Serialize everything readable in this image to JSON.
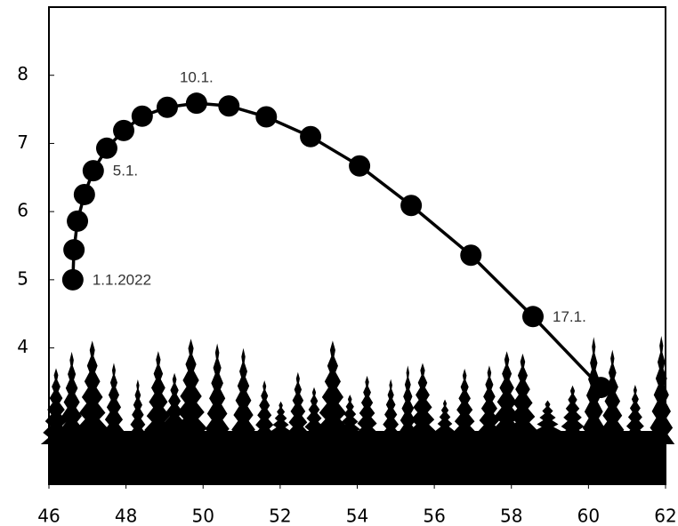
{
  "chart_data": {
    "type": "line",
    "x": [
      46.62,
      46.65,
      46.74,
      46.92,
      47.15,
      47.5,
      47.94,
      48.42,
      49.07,
      49.83,
      50.67,
      51.64,
      52.79,
      54.06,
      55.4,
      56.95,
      58.56,
      60.32
    ],
    "series": [
      {
        "color": "#000000",
        "values": [
          5.0,
          5.44,
          5.86,
          6.25,
          6.6,
          6.93,
          7.19,
          7.4,
          7.53,
          7.59,
          7.55,
          7.39,
          7.1,
          6.67,
          6.09,
          5.36,
          4.46,
          3.42
        ],
        "point_labels": [
          "1.1.2022",
          null,
          null,
          null,
          "5.1.",
          null,
          null,
          null,
          null,
          "10.1.",
          null,
          null,
          null,
          null,
          null,
          null,
          "17.1.",
          null
        ]
      }
    ],
    "xlim": [
      46,
      62
    ],
    "xticks": [
      46,
      48,
      50,
      52,
      54,
      56,
      58,
      60,
      62
    ],
    "ylim": [
      2,
      9
    ],
    "yticks": [
      4,
      5,
      6,
      7,
      8
    ]
  }
}
